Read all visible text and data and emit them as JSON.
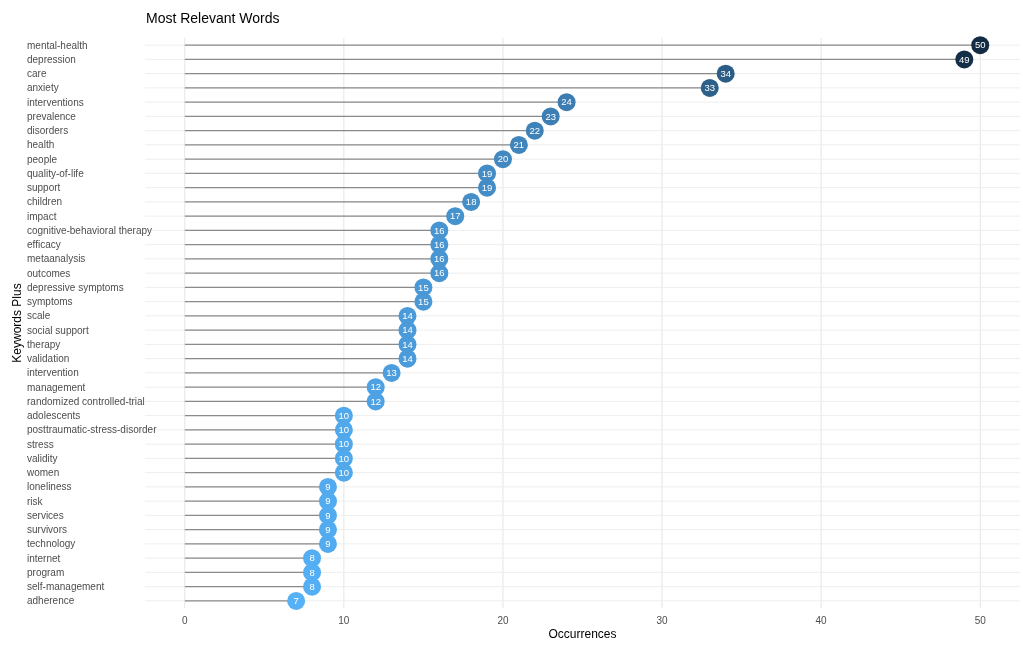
{
  "chart_data": {
    "type": "lollipop",
    "orientation": "horizontal",
    "title": "Most Relevant Words",
    "xlabel": "Occurrences",
    "ylabel": "Keywords Plus",
    "categories": [
      "mental-health",
      "depression",
      "care",
      "anxiety",
      "interventions",
      "prevalence",
      "disorders",
      "health",
      "people",
      "quality-of-life",
      "support",
      "children",
      "impact",
      "cognitive-behavioral therapy",
      "efficacy",
      "metaanalysis",
      "outcomes",
      "depressive symptoms",
      "symptoms",
      "scale",
      "social support",
      "therapy",
      "validation",
      "intervention",
      "management",
      "randomized controlled-trial",
      "adolescents",
      "posttraumatic-stress-disorder",
      "stress",
      "validity",
      "women",
      "loneliness",
      "risk",
      "services",
      "survivors",
      "technology",
      "internet",
      "program",
      "self-management",
      "adherence"
    ],
    "values": [
      50,
      49,
      34,
      33,
      24,
      23,
      22,
      21,
      20,
      19,
      19,
      18,
      17,
      16,
      16,
      16,
      16,
      15,
      15,
      14,
      14,
      14,
      14,
      13,
      12,
      12,
      10,
      10,
      10,
      10,
      10,
      9,
      9,
      9,
      9,
      9,
      8,
      8,
      8,
      7
    ],
    "colors": [
      "#132b43",
      "#152e47",
      "#2c5d86",
      "#2d608a",
      "#3c7cb0",
      "#3d7fb4",
      "#3f82b8",
      "#4085bc",
      "#4289c1",
      "#438cc5",
      "#438cc5",
      "#458fc9",
      "#4692cd",
      "#4895d1",
      "#4895d1",
      "#4895d1",
      "#4895d1",
      "#4a98d6",
      "#4a98d6",
      "#4b9bda",
      "#4b9bda",
      "#4b9bda",
      "#4b9bda",
      "#4d9ede",
      "#4ea1e2",
      "#4ea1e2",
      "#51a8ea",
      "#51a8ea",
      "#51a8ea",
      "#51a8ea",
      "#51a8ea",
      "#53abef",
      "#53abef",
      "#53abef",
      "#53abef",
      "#53abef",
      "#54aef3",
      "#54aef3",
      "#54aef3",
      "#56b1f7"
    ],
    "xlim": [
      -2.5,
      52.5
    ],
    "xticks": [
      0,
      10,
      20,
      30,
      40,
      50
    ],
    "grid": true,
    "data_labels": true,
    "marker": "circle"
  }
}
